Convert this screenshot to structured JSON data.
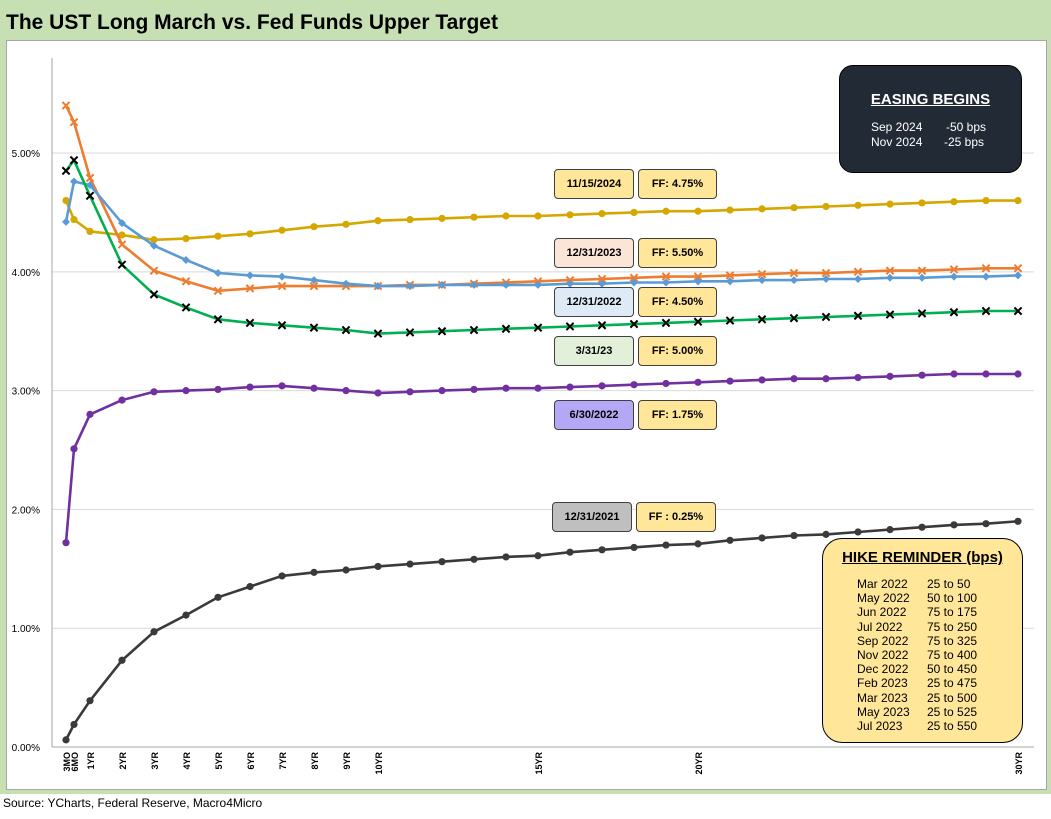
{
  "title": "The UST Long March vs. Fed Funds Upper Target",
  "source": "Source: YCharts, Federal Reserve, Macro4Micro",
  "colors": {
    "frame": "#c6e0b4",
    "gridline": "#d9d9d9",
    "series_2024": "#d4a800",
    "series_2023_12": "#ed7d31",
    "series_2022_12": "#5b9bd5",
    "series_2023_03": "#00b050",
    "series_2022_06": "#7030a0",
    "series_2021": "#3a3a3a",
    "label_ff_bg": "#ffe699",
    "easing_bg": "#222a35",
    "hike_bg": "#ffe699"
  },
  "chart_data": {
    "type": "line",
    "title": "The UST Long March vs. Fed Funds Upper Target",
    "xlabel": "",
    "ylabel": "",
    "x_unit": "maturity (years)",
    "x": [
      0.25,
      0.5,
      1,
      2,
      3,
      4,
      5,
      6,
      7,
      8,
      9,
      10,
      11,
      12,
      13,
      14,
      15,
      16,
      17,
      18,
      19,
      20,
      21,
      22,
      23,
      24,
      25,
      26,
      27,
      28,
      29,
      30
    ],
    "x_tick_labels": [
      {
        "x": 0.25,
        "label": "3MO"
      },
      {
        "x": 0.5,
        "label": "6MO"
      },
      {
        "x": 1,
        "label": "1YR"
      },
      {
        "x": 2,
        "label": "2YR"
      },
      {
        "x": 3,
        "label": "3YR"
      },
      {
        "x": 4,
        "label": "4YR"
      },
      {
        "x": 5,
        "label": "5YR"
      },
      {
        "x": 6,
        "label": "6YR"
      },
      {
        "x": 7,
        "label": "7YR"
      },
      {
        "x": 8,
        "label": "8YR"
      },
      {
        "x": 9,
        "label": "9YR"
      },
      {
        "x": 10,
        "label": "10YR"
      },
      {
        "x": 15,
        "label": "15YR"
      },
      {
        "x": 20,
        "label": "20YR"
      },
      {
        "x": 30,
        "label": "30YR"
      }
    ],
    "ylim": [
      0,
      5.8
    ],
    "y_ticks": [
      0,
      1,
      2,
      3,
      4,
      5
    ],
    "y_tick_labels": [
      "0.00%",
      "1.00%",
      "2.00%",
      "3.00%",
      "4.00%",
      "5.00%"
    ],
    "grid": true,
    "series": [
      {
        "key": "s2024",
        "color": "#d4a800",
        "marker": "dot",
        "date": "11/15/2024",
        "ff": "FF: 4.75%",
        "values": [
          4.6,
          4.44,
          4.34,
          4.31,
          4.27,
          4.28,
          4.3,
          4.32,
          4.35,
          4.38,
          4.4,
          4.43,
          4.44,
          4.45,
          4.46,
          4.47,
          4.47,
          4.48,
          4.49,
          4.5,
          4.51,
          4.51,
          4.52,
          4.53,
          4.54,
          4.55,
          4.56,
          4.57,
          4.58,
          4.59,
          4.6,
          4.6
        ]
      },
      {
        "key": "s2023_12",
        "color": "#ed7d31",
        "marker": "x",
        "date": "12/31/2023",
        "ff": "FF: 5.50%",
        "values": [
          5.4,
          5.26,
          4.79,
          4.23,
          4.01,
          3.92,
          3.84,
          3.86,
          3.88,
          3.88,
          3.88,
          3.88,
          3.89,
          3.89,
          3.9,
          3.91,
          3.92,
          3.93,
          3.94,
          3.95,
          3.96,
          3.96,
          3.97,
          3.98,
          3.99,
          3.99,
          4.0,
          4.01,
          4.01,
          4.02,
          4.03,
          4.03
        ]
      },
      {
        "key": "s2022_12",
        "color": "#5b9bd5",
        "marker": "diamond",
        "date": "12/31/2022",
        "ff": "FF: 4.50%",
        "values": [
          4.42,
          4.76,
          4.73,
          4.41,
          4.22,
          4.1,
          3.99,
          3.97,
          3.96,
          3.93,
          3.9,
          3.88,
          3.88,
          3.89,
          3.89,
          3.89,
          3.89,
          3.9,
          3.9,
          3.91,
          3.91,
          3.92,
          3.92,
          3.93,
          3.93,
          3.94,
          3.94,
          3.95,
          3.95,
          3.96,
          3.96,
          3.97
        ]
      },
      {
        "key": "s2023_03",
        "color": "#00b050",
        "marker": "x",
        "date": "3/31/23",
        "ff": "FF: 5.00%",
        "values": [
          4.85,
          4.94,
          4.64,
          4.06,
          3.81,
          3.7,
          3.6,
          3.57,
          3.55,
          3.53,
          3.51,
          3.48,
          3.49,
          3.5,
          3.51,
          3.52,
          3.53,
          3.54,
          3.55,
          3.56,
          3.57,
          3.58,
          3.59,
          3.6,
          3.61,
          3.62,
          3.63,
          3.64,
          3.65,
          3.66,
          3.67,
          3.67
        ]
      },
      {
        "key": "s2022_06",
        "color": "#7030a0",
        "marker": "dot",
        "date": "6/30/2022",
        "ff": "FF: 1.75%",
        "values": [
          1.72,
          2.51,
          2.8,
          2.92,
          2.99,
          3.0,
          3.01,
          3.03,
          3.04,
          3.02,
          3.0,
          2.98,
          2.99,
          3.0,
          3.01,
          3.02,
          3.02,
          3.03,
          3.04,
          3.05,
          3.06,
          3.07,
          3.08,
          3.09,
          3.1,
          3.1,
          3.11,
          3.12,
          3.13,
          3.14,
          3.14,
          3.14
        ]
      },
      {
        "key": "s2021",
        "color": "#3a3a3a",
        "marker": "dot",
        "date": "12/31/2021",
        "ff": "FF : 0.25%",
        "values": [
          0.06,
          0.19,
          0.39,
          0.73,
          0.97,
          1.11,
          1.26,
          1.35,
          1.44,
          1.47,
          1.49,
          1.52,
          1.54,
          1.56,
          1.58,
          1.6,
          1.61,
          1.64,
          1.66,
          1.68,
          1.7,
          1.71,
          1.74,
          1.76,
          1.78,
          1.79,
          1.81,
          1.83,
          1.85,
          1.87,
          1.88,
          1.9
        ]
      }
    ]
  },
  "labels": [
    {
      "date": "11/15/2024",
      "ff": "FF: 4.75%",
      "date_bg": "#ffe699"
    },
    {
      "date": "12/31/2023",
      "ff": "FF: 5.50%",
      "date_bg": "#fbe5d6"
    },
    {
      "date": "12/31/2022",
      "ff": "FF: 4.50%",
      "date_bg": "#deebf7"
    },
    {
      "date": "3/31/23",
      "ff": "FF: 5.00%",
      "date_bg": "#e2f0d9"
    },
    {
      "date": "6/30/2022",
      "ff": "FF: 1.75%",
      "date_bg": "#b4a7f5"
    },
    {
      "date": "12/31/2021",
      "ff": "FF : 0.25%",
      "date_bg": "#bfbfbf"
    }
  ],
  "easing": {
    "title": "EASING BEGINS",
    "rows": [
      {
        "date": "Sep 2024",
        "bps": "-50 bps"
      },
      {
        "date": "Nov 2024",
        "bps": "-25 bps"
      }
    ]
  },
  "hikes": {
    "title": "HIKE REMINDER (bps)",
    "rows": [
      {
        "date": "Mar 2022",
        "value": "25 to 50"
      },
      {
        "date": "May 2022",
        "value": "50 to 100"
      },
      {
        "date": "Jun 2022",
        "value": "75 to 175"
      },
      {
        "date": "Jul 2022",
        "value": "75 to 250"
      },
      {
        "date": "Sep 2022",
        "value": "75 to 325"
      },
      {
        "date": "Nov 2022",
        "value": "75 to 400"
      },
      {
        "date": "Dec 2022",
        "value": "50 to 450"
      },
      {
        "date": "Feb 2023",
        "value": "25 to 475"
      },
      {
        "date": "Mar 2023",
        "value": "25 to 500"
      },
      {
        "date": "May 2023",
        "value": "25 to 525"
      },
      {
        "date": "Jul 2023",
        "value": "25 to 550"
      }
    ]
  }
}
